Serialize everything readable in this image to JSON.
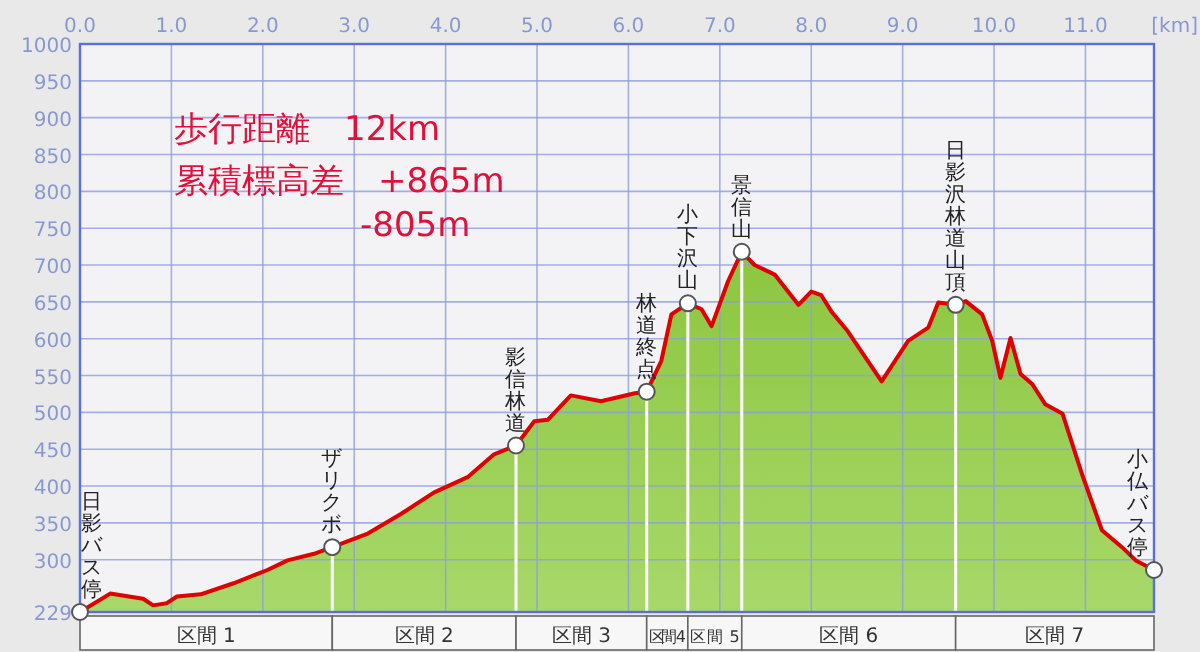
{
  "chart_data": {
    "type": "area",
    "xlabel": "[km]",
    "x": [
      0,
      0.33,
      0.69,
      0.8,
      0.95,
      1.06,
      1.32,
      1.68,
      2.05,
      2.27,
      2.56,
      2.76,
      3.14,
      3.51,
      3.87,
      4.24,
      4.53,
      4.77,
      4.97,
      5.12,
      5.37,
      5.7,
      6.07,
      6.2,
      6.36,
      6.47,
      6.65,
      6.8,
      6.91,
      7.09,
      7.24,
      7.38,
      7.6,
      7.86,
      8.0,
      8.11,
      8.22,
      8.4,
      8.77,
      9.06,
      9.28,
      9.39,
      9.58,
      9.69,
      9.87,
      9.98,
      10.07,
      10.18,
      10.29,
      10.42,
      10.56,
      10.75,
      10.96,
      11.18,
      11.4,
      11.55,
      11.75
    ],
    "series": [
      {
        "color": "#e00000",
        "values": [
          229,
          254,
          247,
          238,
          241,
          250,
          253,
          268,
          286,
          299,
          308,
          317,
          335,
          362,
          391,
          412,
          443,
          455,
          488,
          490,
          523,
          515,
          526,
          528,
          570,
          633,
          648,
          640,
          617,
          678,
          718,
          700,
          687,
          646,
          664,
          659,
          637,
          610,
          542,
          597,
          615,
          649,
          646,
          651,
          633,
          597,
          547,
          601,
          552,
          538,
          511,
          498,
          417,
          340,
          317,
          299,
          286
        ]
      }
    ],
    "xlim": [
      0,
      11.75
    ],
    "ylim": [
      229,
      1000
    ],
    "xticks": [
      {
        "value": 0,
        "label": "0.0"
      },
      {
        "value": 1,
        "label": "1.0"
      },
      {
        "value": 2,
        "label": "2.0"
      },
      {
        "value": 3,
        "label": "3.0"
      },
      {
        "value": 4,
        "label": "4.0"
      },
      {
        "value": 5,
        "label": "5.0"
      },
      {
        "value": 6,
        "label": "6.0"
      },
      {
        "value": 7,
        "label": "7.0"
      },
      {
        "value": 8,
        "label": "8.0"
      },
      {
        "value": 9,
        "label": "9.0"
      },
      {
        "value": 10,
        "label": "10.0"
      },
      {
        "value": 11,
        "label": "11.0"
      }
    ],
    "yticks": [
      229,
      300,
      350,
      400,
      450,
      500,
      550,
      600,
      650,
      700,
      750,
      800,
      850,
      900,
      950,
      1000
    ],
    "grid": true,
    "ref_lines": [
      {
        "axis": "x",
        "value": 2.76,
        "color": "#ffffff"
      },
      {
        "axis": "x",
        "value": 4.77,
        "color": "#ffffff"
      },
      {
        "axis": "x",
        "value": 6.2,
        "color": "#ffffff"
      },
      {
        "axis": "x",
        "value": 6.65,
        "color": "#ffffff"
      },
      {
        "axis": "x",
        "value": 7.24,
        "color": "#ffffff"
      },
      {
        "axis": "x",
        "value": 9.58,
        "color": "#ffffff"
      }
    ],
    "annotations": [
      "歩行距離　12km",
      "累積標高差　+865m",
      "-805m",
      {
        "text": "日影バス停",
        "x": 0,
        "y": 229
      },
      {
        "text": "ザリクボ",
        "x": 2.76,
        "y": 317
      },
      {
        "text": "影信林道",
        "x": 4.77,
        "y": 455
      },
      {
        "text": "林道終点",
        "x": 6.2,
        "y": 528
      },
      {
        "text": "小下沢山",
        "x": 6.65,
        "y": 648
      },
      {
        "text": "景信山",
        "x": 7.24,
        "y": 718
      },
      {
        "text": "日影沢林道山頂",
        "x": 9.58,
        "y": 646
      },
      {
        "text": "小仏バス停",
        "x": 11.75,
        "y": 286
      },
      "区間 1",
      "区間 2",
      "区間 3",
      "区間 4",
      "区間 5",
      "区間 6",
      "区間 7"
    ]
  }
}
